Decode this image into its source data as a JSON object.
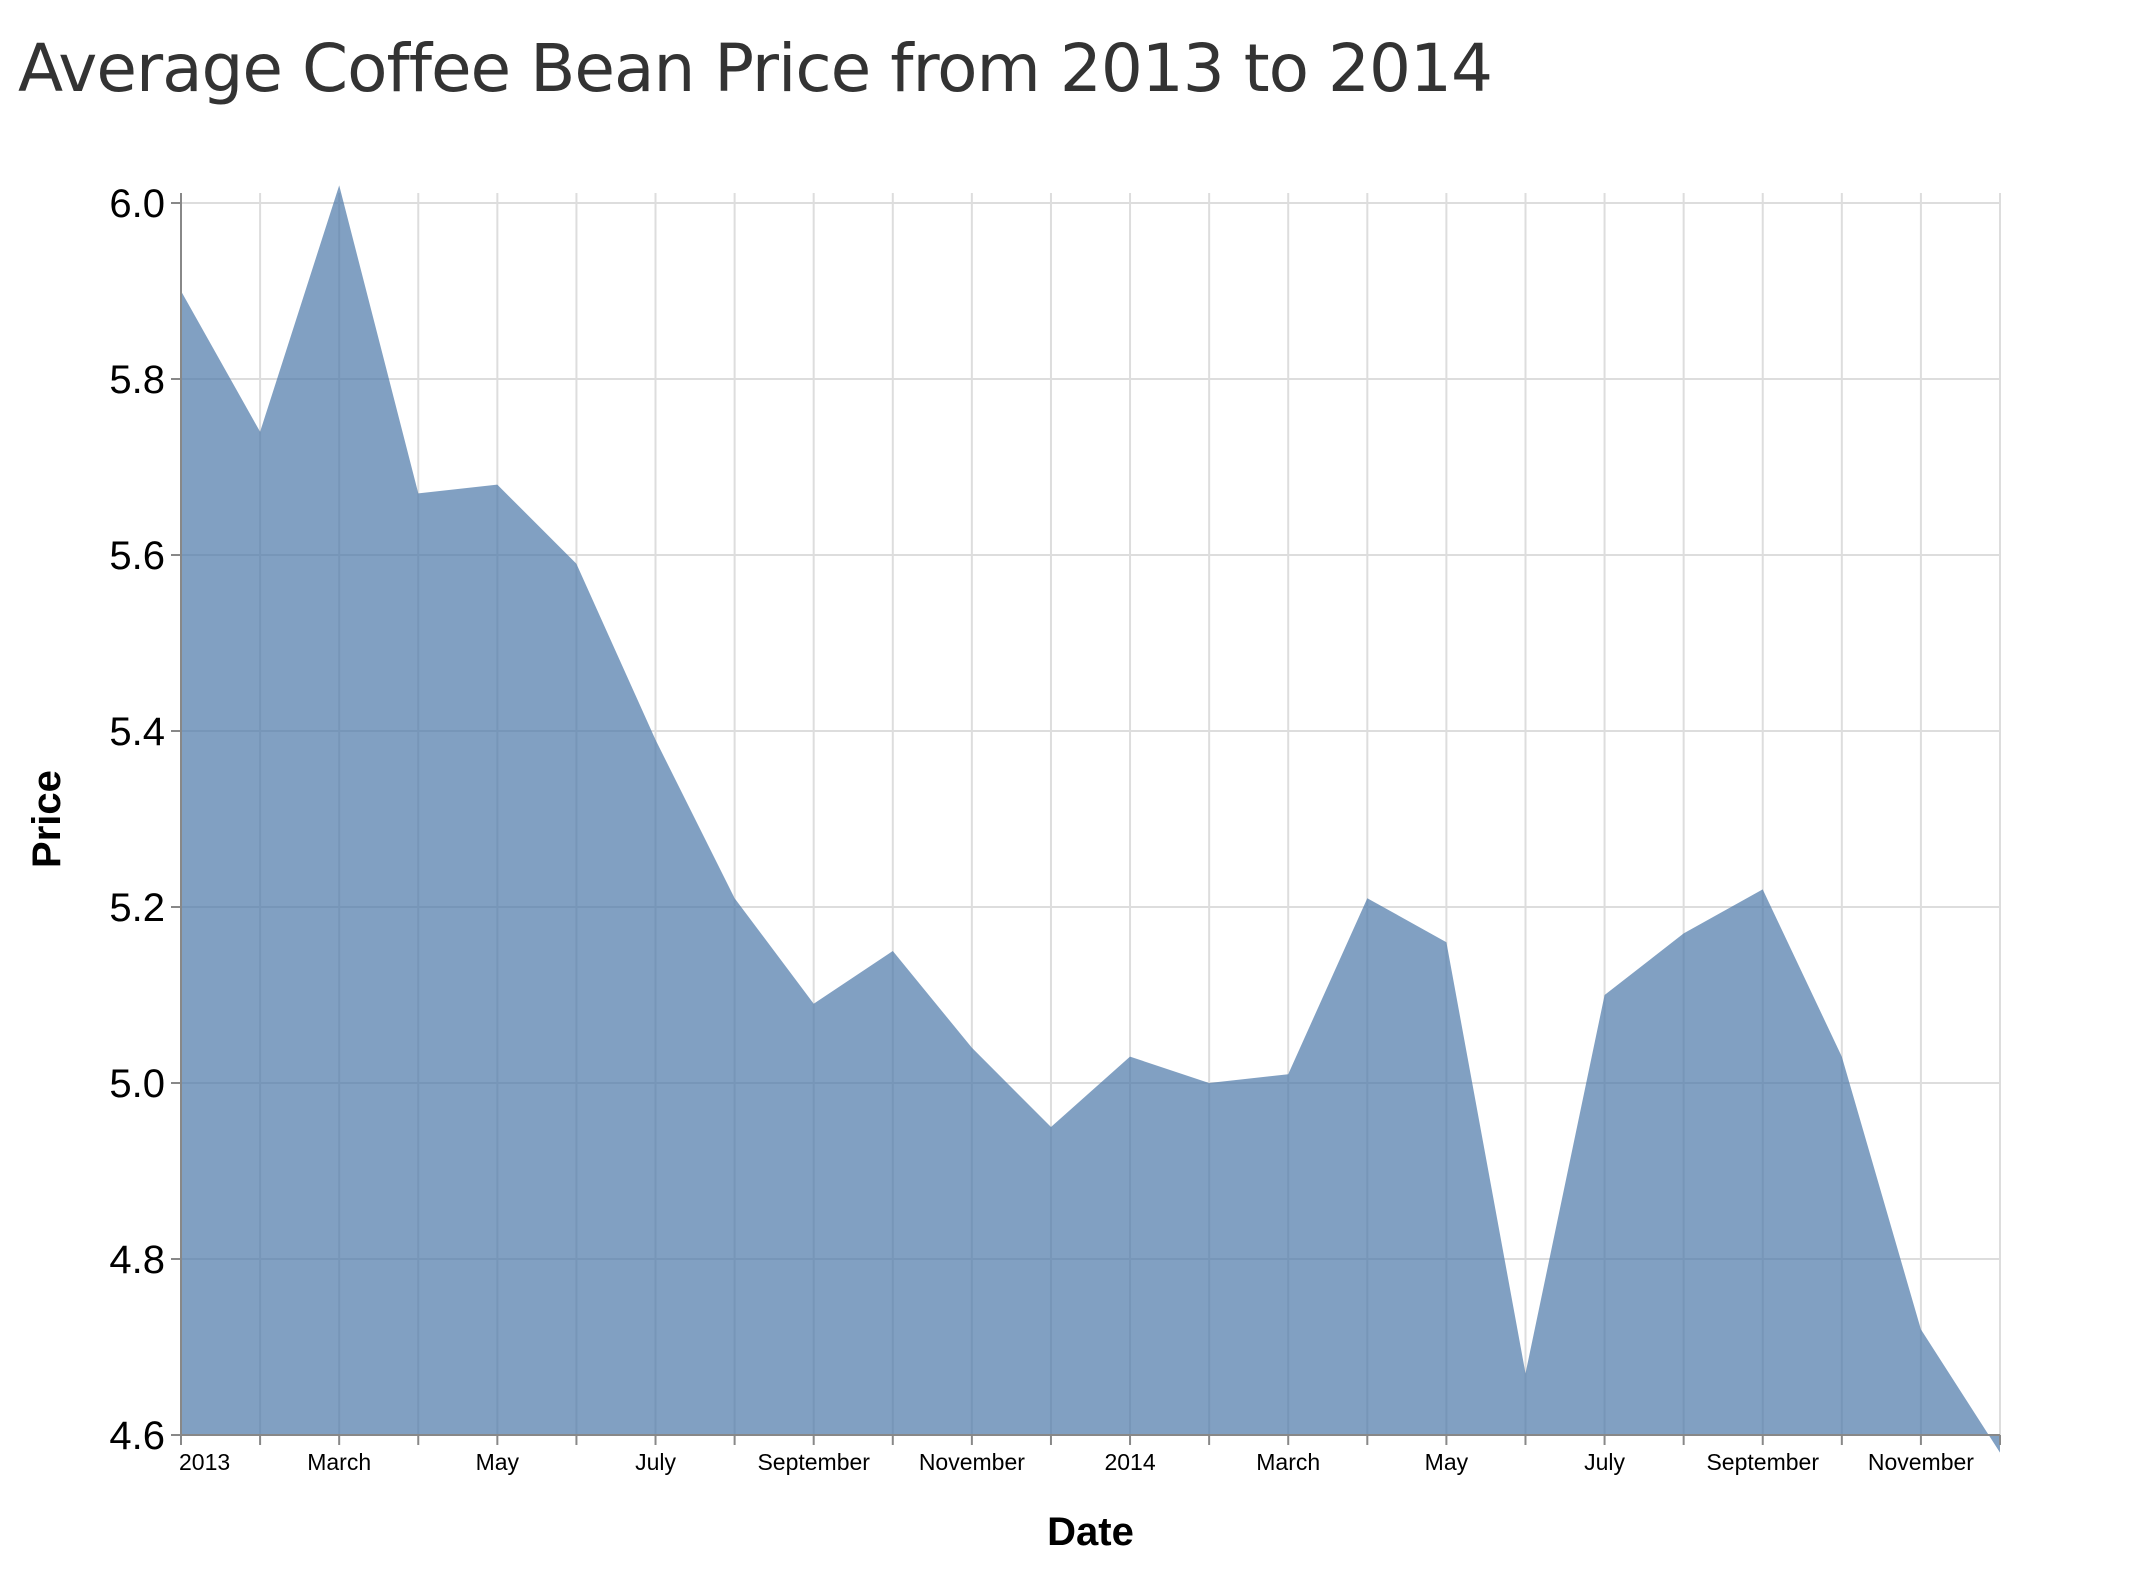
{
  "chart_data": {
    "type": "area",
    "title": "Average Coffee Bean Price from 2013 to 2014",
    "xlabel": "Date",
    "ylabel": "Price",
    "ylim": [
      4.6,
      6.0
    ],
    "y_ticks": [
      "4.6",
      "4.8",
      "5.0",
      "5.2",
      "5.4",
      "5.6",
      "5.8",
      "6.0"
    ],
    "x_ticks": [
      "2013",
      "",
      "March",
      "",
      "May",
      "",
      "July",
      "",
      "September",
      "",
      "November",
      "",
      "2014",
      "",
      "March",
      "",
      "May",
      "",
      "July",
      "",
      "September",
      "",
      "November",
      ""
    ],
    "grid": true,
    "fill_color": "#4c78a8",
    "x": [
      "2013-01",
      "2013-02",
      "2013-03",
      "2013-04",
      "2013-05",
      "2013-06",
      "2013-07",
      "2013-08",
      "2013-09",
      "2013-10",
      "2013-11",
      "2013-12",
      "2014-01",
      "2014-02",
      "2014-03",
      "2014-04",
      "2014-05",
      "2014-06",
      "2014-07",
      "2014-08",
      "2014-09",
      "2014-10",
      "2014-11",
      "2014-12"
    ],
    "values": [
      5.9,
      5.74,
      6.02,
      5.67,
      5.68,
      5.59,
      5.39,
      5.21,
      5.09,
      5.15,
      5.04,
      4.95,
      5.03,
      5.0,
      5.01,
      5.21,
      5.16,
      4.67,
      5.1,
      5.17,
      5.22,
      5.03,
      4.72,
      4.58
    ]
  }
}
